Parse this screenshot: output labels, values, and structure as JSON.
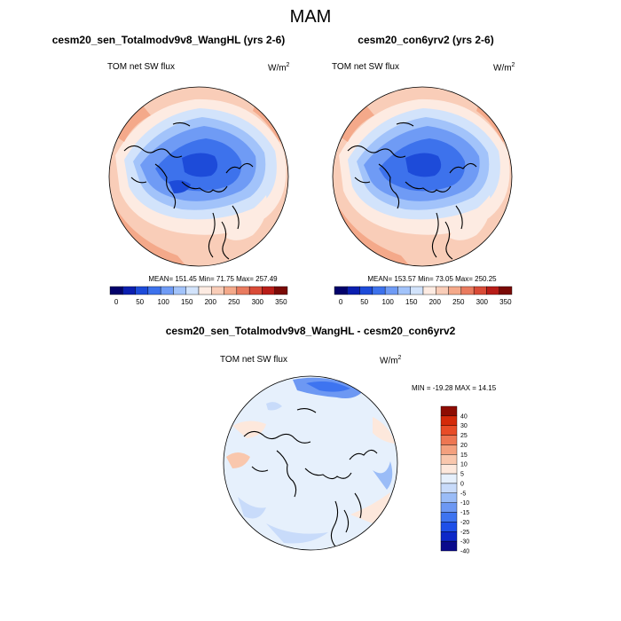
{
  "page": {
    "title": "MAM"
  },
  "panels": [
    {
      "title": "cesm20_sen_Totalmodv9v8_WangHL (yrs 2-6)",
      "left_label": "TOM net SW flux",
      "units": "W/m",
      "units_sup": "2",
      "stats": "MEAN= 151.45  Min=  71.75  Max= 257.49"
    },
    {
      "title": "cesm20_con6yrv2 (yrs 2-6)",
      "left_label": "TOM net SW flux",
      "units": "W/m",
      "units_sup": "2",
      "stats": "MEAN= 153.57  Min=  73.05  Max= 250.25"
    },
    {
      "title": "cesm20_sen_Totalmodv9v8_WangHL - cesm20_con6yrv2",
      "left_label": "TOM net SW flux",
      "units": "W/m",
      "units_sup": "2",
      "stats": "MIN = -19.28 MAX =  14.15"
    }
  ],
  "colors": {
    "abs_scale": [
      "#03026b",
      "#0b1fb0",
      "#1d4bd9",
      "#3d72ec",
      "#6f9bf5",
      "#a2c3fa",
      "#d2e3fb",
      "#fdebe2",
      "#f9cdb8",
      "#f4a98a",
      "#e97b5f",
      "#d94b37",
      "#b81d18",
      "#7a0a06"
    ],
    "diff_scale": [
      "#0a0a8c",
      "#0d28c8",
      "#1e4fe8",
      "#3e74f0",
      "#6d98f3",
      "#9abcf7",
      "#c8dbfa",
      "#e6f0fc",
      "#fde8dc",
      "#f9c7ad",
      "#f4a07e",
      "#ee7652",
      "#e84c27",
      "#d42a0a",
      "#8e0c02"
    ]
  },
  "chart_data": [
    {
      "type": "heatmap",
      "projection": "north-polar-stereographic",
      "title": "cesm20_sen_Totalmodv9v8_WangHL (yrs 2-6)",
      "variable": "TOM net SW flux",
      "units": "W/m2",
      "mean": 151.45,
      "min": 71.75,
      "max": 257.49,
      "colorbar_ticks": [
        "0",
        "50",
        "100",
        "150",
        "200",
        "250",
        "300",
        "350"
      ],
      "colorbar_levels": [
        0,
        25,
        50,
        75,
        100,
        125,
        150,
        175,
        200,
        225,
        250,
        275,
        300,
        325,
        350
      ]
    },
    {
      "type": "heatmap",
      "projection": "north-polar-stereographic",
      "title": "cesm20_con6yrv2 (yrs 2-6)",
      "variable": "TOM net SW flux",
      "units": "W/m2",
      "mean": 153.57,
      "min": 73.05,
      "max": 250.25,
      "colorbar_ticks": [
        "0",
        "50",
        "100",
        "150",
        "200",
        "250",
        "300",
        "350"
      ],
      "colorbar_levels": [
        0,
        25,
        50,
        75,
        100,
        125,
        150,
        175,
        200,
        225,
        250,
        275,
        300,
        325,
        350
      ]
    },
    {
      "type": "heatmap",
      "projection": "north-polar-stereographic",
      "title": "cesm20_sen_Totalmodv9v8_WangHL - cesm20_con6yrv2",
      "variable": "TOM net SW flux",
      "units": "W/m2",
      "min": -19.28,
      "max": 14.15,
      "colorbar_ticks": [
        "40",
        "30",
        "25",
        "20",
        "15",
        "10",
        "5",
        "0",
        "-5",
        "-10",
        "-15",
        "-20",
        "-25",
        "-30",
        "-40"
      ]
    }
  ]
}
